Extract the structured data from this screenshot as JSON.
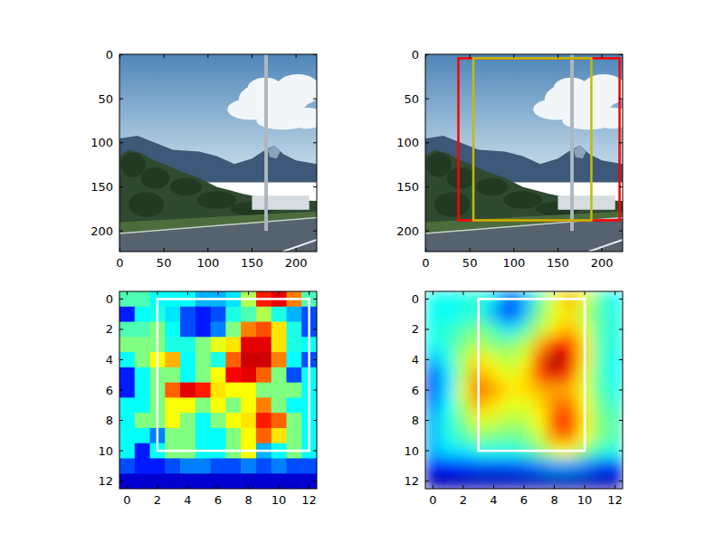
{
  "chart_data": [
    {
      "type": "image",
      "xlim": [
        -0.5,
        223.5
      ],
      "ylim": [
        223.5,
        -0.5
      ],
      "xticks": [
        0,
        50,
        100,
        150,
        200
      ],
      "yticks": [
        0,
        50,
        100,
        150,
        200
      ]
    },
    {
      "type": "image",
      "xlim": [
        -0.5,
        223.5
      ],
      "ylim": [
        223.5,
        -0.5
      ],
      "xticks": [
        0,
        50,
        100,
        150,
        200
      ],
      "yticks": [
        0,
        50,
        100,
        150,
        200
      ],
      "boxes": [
        {
          "color": "#ff0000",
          "x": [
            37,
            220
          ],
          "y": [
            4,
            188
          ]
        },
        {
          "color": "#bfbf00",
          "x": [
            54,
            188
          ],
          "y": [
            4,
            188
          ]
        }
      ]
    },
    {
      "type": "heatmap",
      "xlim": [
        -0.5,
        12.5
      ],
      "ylim": [
        12.5,
        -0.5
      ],
      "xticks": [
        0,
        2,
        4,
        6,
        8,
        10,
        12
      ],
      "yticks": [
        0,
        2,
        4,
        6,
        8,
        10,
        12
      ],
      "value_range": [
        0,
        1
      ],
      "cells": [
        [
          0.45,
          0.45,
          0.38,
          0.38,
          0.38,
          0.3,
          0.3,
          0.35,
          0.55,
          0.85,
          0.9,
          0.75,
          0.45
        ],
        [
          0.15,
          0.38,
          0.4,
          0.35,
          0.2,
          0.15,
          0.2,
          0.4,
          0.45,
          0.55,
          0.4,
          0.3,
          0.2
        ],
        [
          0.45,
          0.45,
          0.5,
          0.38,
          0.2,
          0.15,
          0.25,
          0.5,
          0.75,
          0.8,
          0.65,
          0.4,
          0.2
        ],
        [
          0.5,
          0.5,
          0.5,
          0.4,
          0.4,
          0.5,
          0.6,
          0.65,
          0.9,
          0.9,
          0.65,
          0.4,
          0.38
        ],
        [
          0.38,
          0.5,
          0.62,
          0.7,
          0.38,
          0.5,
          0.4,
          0.78,
          0.92,
          0.92,
          0.75,
          0.38,
          0.2
        ],
        [
          0.15,
          0.38,
          0.5,
          0.5,
          0.38,
          0.5,
          0.62,
          0.88,
          0.9,
          0.78,
          0.5,
          0.2,
          0.38
        ],
        [
          0.15,
          0.38,
          0.5,
          0.78,
          0.9,
          0.85,
          0.65,
          0.62,
          0.62,
          0.5,
          0.5,
          0.5,
          0.38
        ],
        [
          0.38,
          0.38,
          0.5,
          0.62,
          0.62,
          0.5,
          0.62,
          0.5,
          0.62,
          0.75,
          0.5,
          0.38,
          0.38
        ],
        [
          0.38,
          0.5,
          0.5,
          0.62,
          0.5,
          0.38,
          0.5,
          0.62,
          0.65,
          0.85,
          0.78,
          0.5,
          0.38
        ],
        [
          0.38,
          0.38,
          0.25,
          0.5,
          0.5,
          0.38,
          0.38,
          0.5,
          0.62,
          0.78,
          0.65,
          0.5,
          0.38
        ],
        [
          0.38,
          0.15,
          0.38,
          0.5,
          0.5,
          0.38,
          0.38,
          0.5,
          0.62,
          0.3,
          0.38,
          0.5,
          0.38
        ],
        [
          0.2,
          0.15,
          0.15,
          0.2,
          0.25,
          0.25,
          0.2,
          0.2,
          0.25,
          0.2,
          0.25,
          0.2,
          0.2
        ],
        [
          0.08,
          0.08,
          0.08,
          0.08,
          0.08,
          0.08,
          0.08,
          0.08,
          0.08,
          0.08,
          0.08,
          0.08,
          0.08
        ]
      ],
      "boxes": [
        {
          "color": "#ffffff",
          "x": [
            2,
            12
          ],
          "y": [
            0,
            10
          ]
        }
      ]
    },
    {
      "type": "heatmap",
      "xlim": [
        -0.5,
        12.5
      ],
      "ylim": [
        12.5,
        -0.5
      ],
      "xticks": [
        0,
        2,
        4,
        6,
        8,
        10,
        12
      ],
      "yticks": [
        0,
        2,
        4,
        6,
        8,
        10,
        12
      ],
      "value_range": [
        0,
        1
      ],
      "cells": [
        [
          0.4,
          0.38,
          0.4,
          0.42,
          0.35,
          0.2,
          0.3,
          0.45,
          0.6,
          0.7,
          0.6,
          0.45,
          0.38
        ],
        [
          0.38,
          0.38,
          0.4,
          0.42,
          0.3,
          0.15,
          0.3,
          0.5,
          0.6,
          0.65,
          0.55,
          0.45,
          0.4
        ],
        [
          0.4,
          0.42,
          0.45,
          0.5,
          0.45,
          0.35,
          0.45,
          0.55,
          0.65,
          0.7,
          0.6,
          0.45,
          0.4
        ],
        [
          0.38,
          0.42,
          0.5,
          0.55,
          0.5,
          0.5,
          0.55,
          0.7,
          0.85,
          0.85,
          0.65,
          0.45,
          0.4
        ],
        [
          0.3,
          0.4,
          0.55,
          0.65,
          0.6,
          0.55,
          0.6,
          0.8,
          0.97,
          0.9,
          0.65,
          0.45,
          0.38
        ],
        [
          0.2,
          0.35,
          0.55,
          0.72,
          0.65,
          0.6,
          0.65,
          0.8,
          0.9,
          0.8,
          0.6,
          0.45,
          0.38
        ],
        [
          0.2,
          0.35,
          0.6,
          0.78,
          0.72,
          0.65,
          0.65,
          0.7,
          0.72,
          0.7,
          0.6,
          0.45,
          0.4
        ],
        [
          0.25,
          0.38,
          0.55,
          0.7,
          0.65,
          0.6,
          0.6,
          0.65,
          0.75,
          0.78,
          0.62,
          0.48,
          0.42
        ],
        [
          0.3,
          0.4,
          0.5,
          0.6,
          0.58,
          0.55,
          0.55,
          0.62,
          0.8,
          0.85,
          0.65,
          0.5,
          0.45
        ],
        [
          0.3,
          0.4,
          0.45,
          0.52,
          0.5,
          0.48,
          0.5,
          0.58,
          0.75,
          0.78,
          0.62,
          0.5,
          0.45
        ],
        [
          0.3,
          0.35,
          0.35,
          0.4,
          0.4,
          0.4,
          0.42,
          0.5,
          0.6,
          0.62,
          0.5,
          0.42,
          0.4
        ],
        [
          0.15,
          0.15,
          0.18,
          0.2,
          0.2,
          0.2,
          0.22,
          0.25,
          0.28,
          0.28,
          0.25,
          0.2,
          0.18
        ],
        [
          0.05,
          0.05,
          0.05,
          0.05,
          0.05,
          0.05,
          0.05,
          0.05,
          0.05,
          0.05,
          0.05,
          0.05,
          0.05
        ]
      ],
      "boxes": [
        {
          "color": "#ffffff",
          "x": [
            3,
            10
          ],
          "y": [
            0,
            10
          ]
        }
      ]
    }
  ]
}
